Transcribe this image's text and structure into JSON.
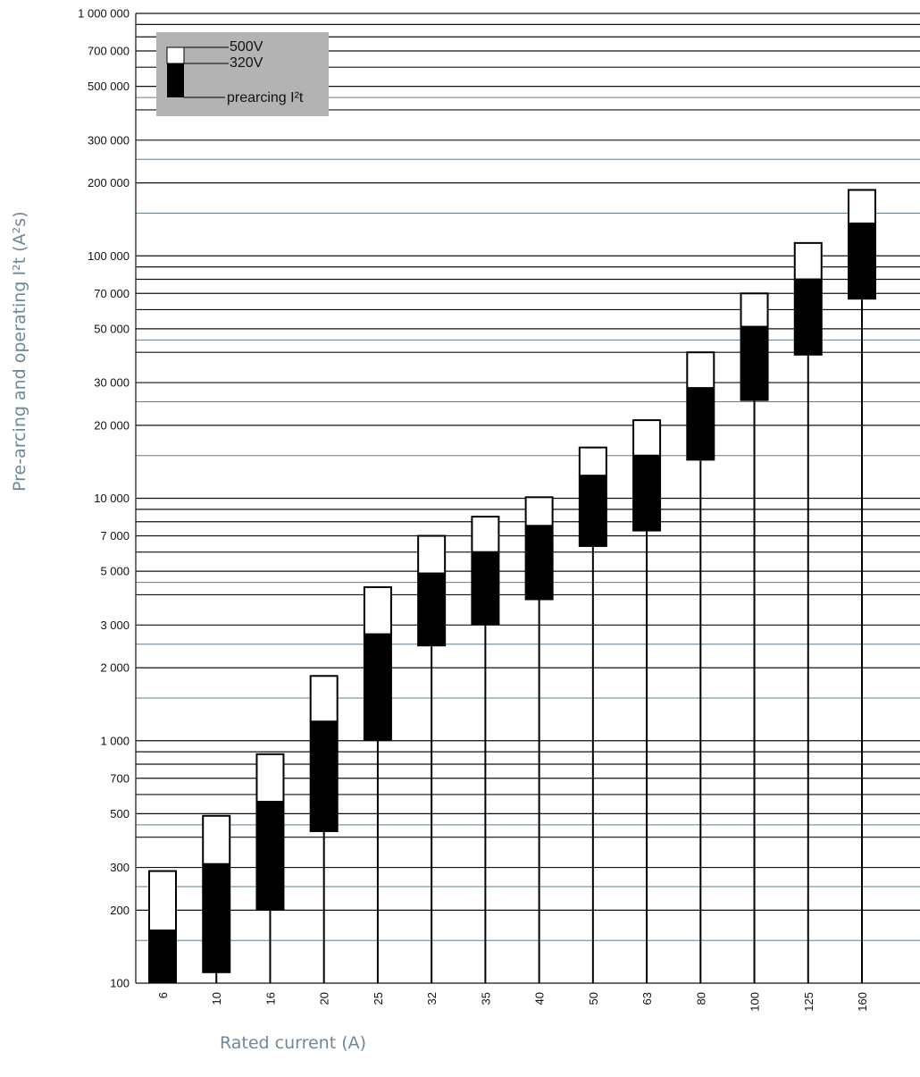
{
  "chart_data": {
    "type": "floating-bar",
    "title": "",
    "ylabel": "Pre-arcing and operating I²t (A²s)",
    "xlabel": "Rated current (A)",
    "y_scale": "log",
    "ylim": [
      100,
      1000000
    ],
    "grid": true,
    "legend_position": "top-left",
    "legend": {
      "white_label": "500V",
      "black_label": "320V",
      "bottom_label": "prearcing I²t"
    },
    "categories": [
      "6",
      "10",
      "16",
      "20",
      "25",
      "32",
      "35",
      "40",
      "50",
      "63",
      "80",
      "100",
      "125",
      "160"
    ],
    "series": [
      {
        "name": "prearcing I²t",
        "values": [
          100,
          110,
          200,
          420,
          1000,
          2450,
          3000,
          3800,
          6300,
          7300,
          14300,
          25200,
          38800,
          66000
        ]
      },
      {
        "name": "320V",
        "values": [
          165,
          310,
          560,
          1200,
          2750,
          4900,
          6000,
          7700,
          12400,
          15000,
          28500,
          51000,
          80000,
          136000
        ]
      },
      {
        "name": "500V",
        "values": [
          290,
          490,
          880,
          1850,
          4300,
          7000,
          8400,
          10100,
          16200,
          21000,
          40000,
          70000,
          113000,
          187000
        ]
      }
    ],
    "y_ticks": [
      {
        "value": 1000000,
        "label": "1 000 000"
      },
      {
        "value": 700000,
        "label": "700 000"
      },
      {
        "value": 500000,
        "label": "500 000"
      },
      {
        "value": 300000,
        "label": "300 000"
      },
      {
        "value": 200000,
        "label": "200 000"
      },
      {
        "value": 100000,
        "label": "100 000"
      },
      {
        "value": 70000,
        "label": "70 000"
      },
      {
        "value": 50000,
        "label": "50 000"
      },
      {
        "value": 30000,
        "label": "30 000"
      },
      {
        "value": 20000,
        "label": "20 000"
      },
      {
        "value": 10000,
        "label": "10 000"
      },
      {
        "value": 7000,
        "label": "7 000"
      },
      {
        "value": 5000,
        "label": "5 000"
      },
      {
        "value": 3000,
        "label": "3 000"
      },
      {
        "value": 2000,
        "label": "2 000"
      },
      {
        "value": 1000,
        "label": "1 000"
      },
      {
        "value": 700,
        "label": "700"
      },
      {
        "value": 500,
        "label": "500"
      },
      {
        "value": 300,
        "label": "300"
      },
      {
        "value": 200,
        "label": "200"
      },
      {
        "value": 100,
        "label": "100"
      }
    ],
    "colors": {
      "major_grid": "#111111",
      "minor_grid": "#5f7f8c",
      "legend_bg": "#b3b3b3",
      "bar_dark": "#000000",
      "bar_light": "#ffffff",
      "axis_title": "#6e8a96"
    }
  }
}
